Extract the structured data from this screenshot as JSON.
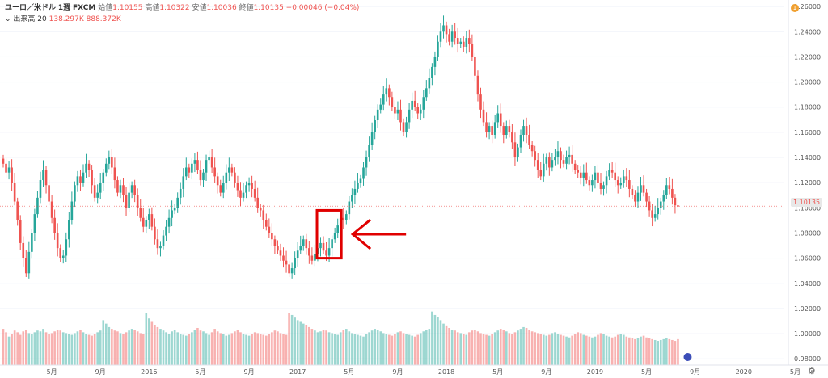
{
  "legend": {
    "symbol": "ユーロ／米ドル",
    "interval": "1週",
    "source": "FXCM",
    "open_label": "始値",
    "open_value": "1.10155",
    "high_label": "高値",
    "high_value": "1.10322",
    "low_label": "安値",
    "low_value": "1.10036",
    "close_label": "終値",
    "close_value": "1.10135",
    "change": "−0.00046 (−0.04%)",
    "volume_label": "出来高 20",
    "volume_value_1": "138.297K",
    "volume_value_2": "888.372K"
  },
  "last_price": "1.10135",
  "alert_badge": "1",
  "colors": {
    "up": "#26a69a",
    "down": "#ef5350",
    "highlight": "#e00000"
  },
  "chart_data": {
    "type": "candlestick",
    "y_ticks": [
      "1.26000",
      "1.24000",
      "1.22000",
      "1.20000",
      "1.18000",
      "1.16000",
      "1.14000",
      "1.12000",
      "1.10000",
      "1.08000",
      "1.06000",
      "1.04000",
      "1.02000",
      "1.00000",
      "0.98000"
    ],
    "ylim": [
      0.975,
      1.262
    ],
    "x_ticks": [
      "5月",
      "9月",
      "2016",
      "5月",
      "9月",
      "2017",
      "5月",
      "9月",
      "2018",
      "5月",
      "9月",
      "2019",
      "5月",
      "9月",
      "2020",
      "5月"
    ],
    "weeks_per_year": 52,
    "first_tick_week": 17,
    "closes": [
      1.135,
      1.128,
      1.132,
      1.12,
      1.105,
      1.09,
      1.072,
      1.06,
      1.048,
      1.065,
      1.08,
      1.095,
      1.108,
      1.122,
      1.13,
      1.118,
      1.105,
      1.092,
      1.08,
      1.068,
      1.06,
      1.062,
      1.075,
      1.09,
      1.105,
      1.118,
      1.125,
      1.12,
      1.128,
      1.135,
      1.13,
      1.118,
      1.108,
      1.112,
      1.12,
      1.128,
      1.135,
      1.14,
      1.132,
      1.122,
      1.112,
      1.118,
      1.11,
      1.1,
      1.112,
      1.118,
      1.11,
      1.1,
      1.092,
      1.085,
      1.09,
      1.095,
      1.085,
      1.075,
      1.068,
      1.07,
      1.078,
      1.085,
      1.092,
      1.098,
      1.1,
      1.108,
      1.115,
      1.125,
      1.132,
      1.128,
      1.135,
      1.138,
      1.13,
      1.122,
      1.128,
      1.138,
      1.14,
      1.132,
      1.125,
      1.118,
      1.112,
      1.12,
      1.128,
      1.132,
      1.128,
      1.12,
      1.114,
      1.108,
      1.112,
      1.118,
      1.12,
      1.115,
      1.108,
      1.1,
      1.098,
      1.09,
      1.085,
      1.08,
      1.075,
      1.07,
      1.066,
      1.062,
      1.058,
      1.055,
      1.048,
      1.052,
      1.06,
      1.066,
      1.07,
      1.075,
      1.068,
      1.062,
      1.058,
      1.063,
      1.068,
      1.072,
      1.066,
      1.062,
      1.068,
      1.075,
      1.08,
      1.086,
      1.092,
      1.09,
      1.095,
      1.105,
      1.11,
      1.115,
      1.12,
      1.123,
      1.132,
      1.14,
      1.15,
      1.16,
      1.17,
      1.178,
      1.182,
      1.19,
      1.195,
      1.188,
      1.18,
      1.175,
      1.178,
      1.168,
      1.16,
      1.168,
      1.178,
      1.185,
      1.18,
      1.175,
      1.178,
      1.188,
      1.195,
      1.203,
      1.212,
      1.22,
      1.232,
      1.24,
      1.245,
      1.238,
      1.232,
      1.24,
      1.235,
      1.23,
      1.232,
      1.228,
      1.235,
      1.23,
      1.22,
      1.205,
      1.19,
      1.178,
      1.168,
      1.16,
      1.165,
      1.158,
      1.168,
      1.175,
      1.165,
      1.158,
      1.165,
      1.16,
      1.152,
      1.14,
      1.148,
      1.158,
      1.165,
      1.158,
      1.15,
      1.145,
      1.138,
      1.13,
      1.125,
      1.135,
      1.14,
      1.132,
      1.138,
      1.14,
      1.145,
      1.138,
      1.135,
      1.14,
      1.142,
      1.135,
      1.13,
      1.128,
      1.124,
      1.128,
      1.122,
      1.118,
      1.122,
      1.128,
      1.12,
      1.115,
      1.118,
      1.125,
      1.13,
      1.128,
      1.122,
      1.118,
      1.12,
      1.125,
      1.122,
      1.115,
      1.11,
      1.105,
      1.112,
      1.118,
      1.112,
      1.105,
      1.098,
      1.092,
      1.095,
      1.1,
      1.105,
      1.11,
      1.118,
      1.115,
      1.108,
      1.102,
      1.101
    ],
    "volume_ylim": [
      0,
      100
    ],
    "volumes": [
      42,
      38,
      33,
      36,
      40,
      38,
      35,
      39,
      41,
      37,
      36,
      38,
      40,
      39,
      42,
      38,
      36,
      37,
      39,
      41,
      40,
      38,
      37,
      36,
      35,
      37,
      39,
      41,
      38,
      36,
      35,
      34,
      36,
      38,
      40,
      52,
      48,
      44,
      42,
      40,
      39,
      37,
      36,
      38,
      40,
      42,
      41,
      39,
      37,
      36,
      60,
      54,
      50,
      46,
      44,
      42,
      40,
      38,
      36,
      39,
      41,
      38,
      36,
      35,
      34,
      36,
      38,
      41,
      43,
      40,
      39,
      37,
      35,
      38,
      42,
      39,
      37,
      36,
      34,
      35,
      37,
      39,
      41,
      38,
      36,
      35,
      34,
      36,
      38,
      37,
      36,
      35,
      34,
      36,
      38,
      40,
      39,
      37,
      36,
      35,
      60,
      58,
      55,
      52,
      50,
      48,
      46,
      44,
      42,
      40,
      38,
      39,
      41,
      40,
      38,
      37,
      36,
      35,
      38,
      41,
      42,
      39,
      37,
      36,
      35,
      34,
      33,
      36,
      38,
      40,
      42,
      41,
      39,
      37,
      36,
      35,
      34,
      36,
      38,
      39,
      37,
      36,
      35,
      34,
      33,
      35,
      37,
      39,
      41,
      42,
      62,
      58,
      56,
      52,
      48,
      45,
      43,
      41,
      40,
      38,
      37,
      36,
      35,
      38,
      40,
      41,
      39,
      37,
      36,
      35,
      34,
      36,
      38,
      40,
      42,
      41,
      39,
      37,
      36,
      38,
      40,
      42,
      44,
      43,
      41,
      39,
      38,
      37,
      36,
      35,
      34,
      35,
      37,
      38,
      36,
      35,
      34,
      33,
      32,
      34,
      36,
      38,
      37,
      35,
      34,
      33,
      32,
      33,
      35,
      37,
      36,
      34,
      33,
      32,
      33,
      35,
      36,
      35,
      33,
      32,
      31,
      30,
      31,
      33,
      34,
      32,
      31,
      30,
      29,
      28,
      29,
      30,
      31,
      30,
      29,
      28,
      30,
      31,
      29,
      28,
      27,
      26,
      27,
      28,
      29,
      28,
      27,
      26,
      25,
      24,
      26,
      27,
      25,
      24,
      23,
      22,
      20,
      18
    ]
  }
}
